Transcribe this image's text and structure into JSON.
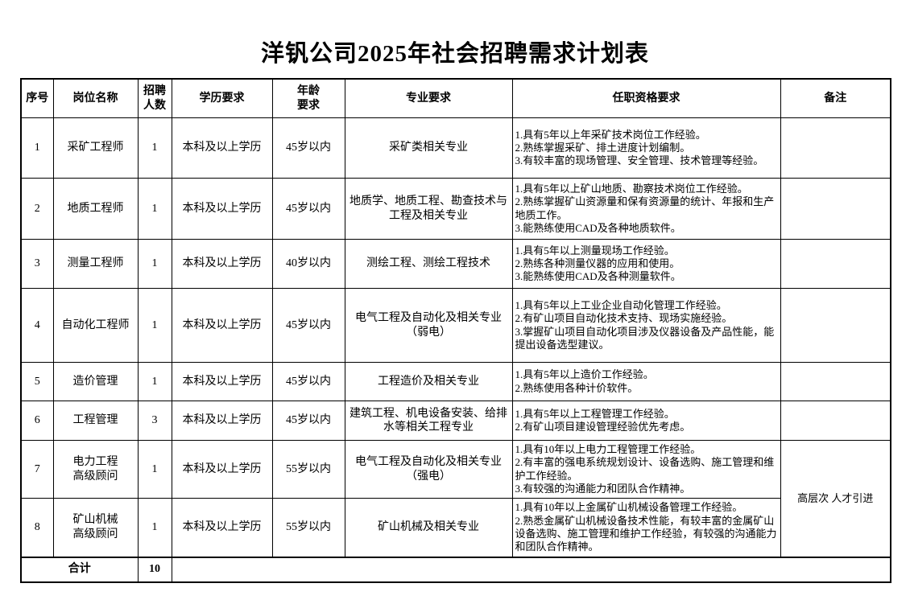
{
  "page": {
    "title": "洋钒公司2025年社会招聘需求计划表"
  },
  "colors": {
    "border": "#000000",
    "text": "#000000",
    "background": "#ffffff"
  },
  "table": {
    "headers": [
      "序号",
      "岗位名称",
      "招聘\n人数",
      "学历要求",
      "年龄\n要求",
      "专业要求",
      "任职资格要求",
      "备注"
    ],
    "rows": [
      {
        "no": "1",
        "position": "采矿工程师",
        "count": "1",
        "education": "本科及以上学历",
        "age": "45岁以内",
        "major": "采矿类相关专业",
        "qualifications": "1.具有5年以上年采矿技术岗位工作经验。\n2.熟练掌握采矿、排土进度计划编制。\n3.有较丰富的现场管理、安全管理、技术管理等经验。",
        "remark": ""
      },
      {
        "no": "2",
        "position": "地质工程师",
        "count": "1",
        "education": "本科及以上学历",
        "age": "45岁以内",
        "major": "地质学、地质工程、勘查技术与\n工程及相关专业",
        "qualifications": "1.具有5年以上矿山地质、勘察技术岗位工作经验。\n2.熟练掌握矿山资源量和保有资源量的统计、年报和生产地质工作。\n3.能熟练使用CAD及各种地质软件。",
        "remark": ""
      },
      {
        "no": "3",
        "position": "测量工程师",
        "count": "1",
        "education": "本科及以上学历",
        "age": "40岁以内",
        "major": "测绘工程、测绘工程技术",
        "qualifications": "1.具有5年以上测量现场工作经验。\n2.熟练各种测量仪器的应用和使用。\n3.能熟练使用CAD及各种测量软件。",
        "remark": ""
      },
      {
        "no": "4",
        "position": "自动化工程师",
        "count": "1",
        "education": "本科及以上学历",
        "age": "45岁以内",
        "major": "电气工程及自动化及相关专业\n（弱电）",
        "qualifications": "1.具有5年以上工业企业自动化管理工作经验。\n2.有矿山项目自动化技术支持、现场实施经验。\n3.掌握矿山项目自动化项目涉及仪器设备及产品性能，能提出设备选型建议。",
        "remark": ""
      },
      {
        "no": "5",
        "position": "造价管理",
        "count": "1",
        "education": "本科及以上学历",
        "age": "45岁以内",
        "major": "工程造价及相关专业",
        "qualifications": "1.具有5年以上造价工作经验。\n2.熟练使用各种计价软件。",
        "remark": ""
      },
      {
        "no": "6",
        "position": "工程管理",
        "count": "3",
        "education": "本科及以上学历",
        "age": "45岁以内",
        "major": "建筑工程、机电设备安装、给排\n水等相关工程专业",
        "qualifications": "1.具有5年以上工程管理工作经验。\n2.有矿山项目建设管理经验优先考虑。",
        "remark": ""
      },
      {
        "no": "7",
        "position": "电力工程\n高级顾问",
        "count": "1",
        "education": "本科及以上学历",
        "age": "55岁以内",
        "major": "电气工程及自动化及相关专业\n（强电）",
        "qualifications": "1.具有10年以上电力工程管理工作经验。\n2.有丰富的强电系统规划设计、设备选购、施工管理和维护工作经验。\n3.有较强的沟通能力和团队合作精神。",
        "remark": "高层次 人才引进",
        "remark_rowspan": 2
      },
      {
        "no": "8",
        "position": "矿山机械\n高级顾问",
        "count": "1",
        "education": "本科及以上学历",
        "age": "55岁以内",
        "major": "矿山机械及相关专业",
        "qualifications": "1.具有10年以上金属矿山机械设备管理工作经验。\n2.熟悉金属矿山机械设备技术性能，有较丰富的金属矿山设备选购、施工管理和维护工作经验，有较强的沟通能力和团队合作精神。"
      }
    ],
    "footer": {
      "label": "合计",
      "total": "10"
    }
  }
}
